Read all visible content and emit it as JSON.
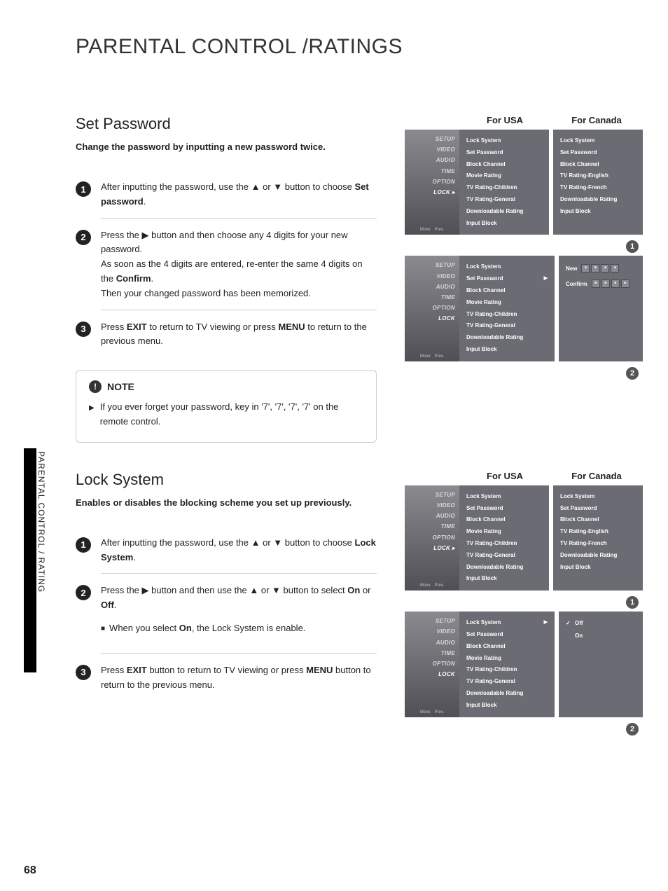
{
  "colors": {
    "step_circle_bg": "#222222",
    "badge_bg": "#555555",
    "panel_bg": "#6b6b73",
    "sidebar_grad_top": "#8a8a8f",
    "sidebar_grad_bot": "#4f4f55"
  },
  "page_title": "PARENTAL CONTROL /RATINGS",
  "page_number": "68",
  "side_tab_text": "PARENTAL CONTROL / RATING",
  "section1": {
    "title": "Set Password",
    "desc": "Change the password by inputting a new password twice.",
    "steps": [
      {
        "num": "1",
        "html": "After inputting the password, use the ▲ or ▼ button to choose <b>Set password</b>."
      },
      {
        "num": "2",
        "html": "Press the ▶ button and then choose any 4 digits for your new password.<br>As soon as the 4 digits are entered, re-enter the same 4 digits on the <b>Confirm</b>.<br>Then your changed password has been memorized."
      },
      {
        "num": "3",
        "html": "Press <b>EXIT</b> to return to TV viewing or press <b>MENU</b> to return to the previous menu."
      }
    ],
    "note_label": "NOTE",
    "note_text": "If you ever forget your password, key in '7', '7', '7', '7' on the remote control."
  },
  "section2": {
    "title": "Lock System",
    "desc": "Enables or disables the blocking scheme you set up previously.",
    "steps": [
      {
        "num": "1",
        "html": "After inputting the password, use the ▲ or ▼ button to choose <b>Lock System</b>."
      },
      {
        "num": "2",
        "html": "Press the ▶ button and then use the ▲ or ▼ button to select <b>On</b> or <b>Off</b>.",
        "sub": "When you select <b>On</b>, the Lock System is enable."
      },
      {
        "num": "3",
        "html": "Press <b>EXIT</b> button to return to TV viewing or press <b>MENU</b> button to return to the previous menu."
      }
    ]
  },
  "tv": {
    "sidebar_items": [
      "SETUP",
      "VIDEO",
      "AUDIO",
      "TIME",
      "OPTION",
      "LOCK"
    ],
    "sidebar_sel_arrow": "▸",
    "footer": {
      "move": "Move",
      "prev": "Prev."
    },
    "usa_menu": [
      "Lock System",
      "Set Password",
      "Block Channel",
      "Movie Rating",
      "TV Rating-Children",
      "TV Rating-General",
      "Downloadable Rating",
      "Input Block"
    ],
    "canada_menu": [
      "Lock System",
      "Set Password",
      "Block Channel",
      "TV Rating-English",
      "TV Rating-French",
      "Downloadable Rating",
      "Input Block"
    ],
    "label_usa": "For USA",
    "label_canada": "For Canada",
    "new_label": "New",
    "confirm_label": "Confirm",
    "lock_options": [
      "Off",
      "On"
    ],
    "check_mark": "✓"
  }
}
